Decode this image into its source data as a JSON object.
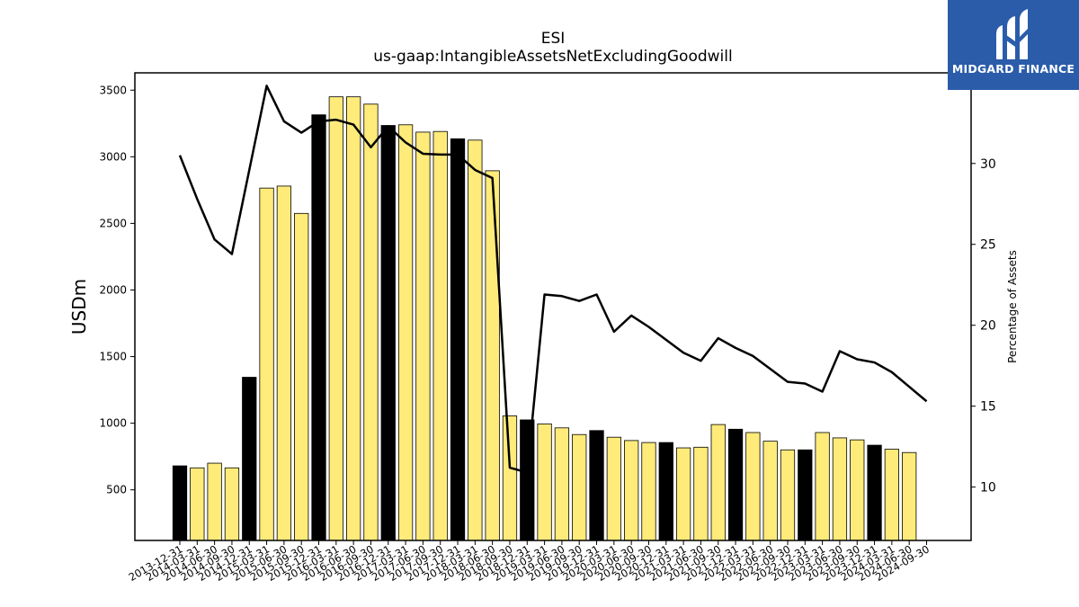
{
  "logo": {
    "text": "MIDGARD FINANCE"
  },
  "chart_data": {
    "type": "bar",
    "title": "ESI",
    "subtitle": "us-gaap:IntangibleAssetsNetExcludingGoodwill",
    "ylabel": "USDm",
    "y2label": "Percentage of Assets",
    "ylim": [
      120,
      3630
    ],
    "y2lim": [
      6.7,
      35.6
    ],
    "yticks": [
      500,
      1000,
      1500,
      2000,
      2500,
      3000,
      3500
    ],
    "y2ticks": [
      10,
      15,
      20,
      25,
      30
    ],
    "grid": false,
    "colors": {
      "bar_default": "#ffeb7a",
      "bar_highlight": "#000000",
      "line": "#000000"
    },
    "categories": [
      "2013-12-31",
      "2014-03-31",
      "2014-06-30",
      "2014-09-30",
      "2014-12-31",
      "2015-03-31",
      "2015-06-30",
      "2015-09-30",
      "2015-12-31",
      "2016-03-31",
      "2016-06-30",
      "2016-09-30",
      "2016-12-31",
      "2017-03-31",
      "2017-06-30",
      "2017-09-30",
      "2017-12-31",
      "2018-03-31",
      "2018-06-30",
      "2018-09-30",
      "2018-12-31",
      "2019-03-31",
      "2019-06-30",
      "2019-09-30",
      "2019-12-31",
      "2020-03-31",
      "2020-06-30",
      "2020-09-30",
      "2020-12-31",
      "2021-03-31",
      "2021-06-30",
      "2021-09-30",
      "2021-12-31",
      "2022-03-31",
      "2022-06-30",
      "2022-09-30",
      "2022-12-31",
      "2023-03-31",
      "2023-06-30",
      "2023-09-30",
      "2023-12-31",
      "2024-03-31",
      "2024-06-30",
      "2024-09-30"
    ],
    "series": [
      {
        "type": "bar",
        "values": [
          680,
          665,
          700,
          665,
          1345,
          2765,
          2780,
          2575,
          3315,
          3450,
          3450,
          3395,
          3235,
          3240,
          3185,
          3190,
          3135,
          3125,
          2895,
          1055,
          1025,
          995,
          965,
          915,
          945,
          895,
          870,
          855,
          855,
          815,
          820,
          990,
          955,
          930,
          865,
          800,
          800,
          930,
          890,
          875,
          835,
          805,
          780,
          0
        ],
        "highlight": [
          true,
          false,
          false,
          false,
          true,
          false,
          false,
          false,
          true,
          false,
          false,
          false,
          true,
          false,
          false,
          false,
          true,
          false,
          false,
          false,
          true,
          false,
          false,
          false,
          true,
          false,
          false,
          false,
          true,
          false,
          false,
          false,
          true,
          false,
          false,
          false,
          true,
          false,
          false,
          false,
          true,
          false,
          false,
          false
        ]
      },
      {
        "type": "line",
        "axis": "right",
        "values": [
          30.5,
          27.8,
          25.3,
          24.4,
          29.6,
          34.8,
          32.6,
          31.9,
          32.6,
          32.7,
          32.4,
          31.0,
          32.3,
          31.3,
          30.6,
          30.55,
          30.55,
          29.6,
          29.1,
          11.2,
          10.9,
          21.9,
          21.8,
          21.5,
          21.9,
          19.6,
          20.6,
          19.9,
          19.1,
          18.3,
          17.8,
          19.2,
          18.6,
          18.1,
          17.3,
          16.5,
          16.4,
          15.9,
          18.4,
          17.9,
          17.7,
          17.1,
          16.2,
          15.3
        ]
      }
    ]
  }
}
